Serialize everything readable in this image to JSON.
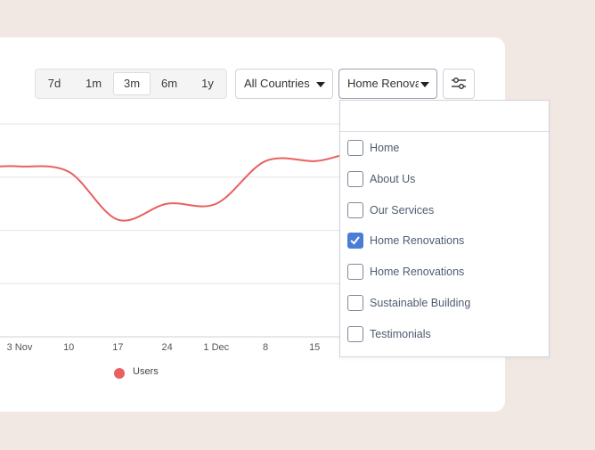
{
  "time_ranges": [
    "7d",
    "1m",
    "3m",
    "6m",
    "1y"
  ],
  "active_range": "3m",
  "country_select": {
    "value": "All Countries"
  },
  "page_select": {
    "value": "Home Renovat"
  },
  "dropdown": {
    "search_value": "",
    "options": [
      {
        "label": "Home",
        "checked": false
      },
      {
        "label": "About Us",
        "checked": false
      },
      {
        "label": "Our Services",
        "checked": false
      },
      {
        "label": "Home Renovations",
        "checked": true
      },
      {
        "label": "Home Renovations",
        "checked": false
      },
      {
        "label": "Sustainable Building",
        "checked": false
      },
      {
        "label": "Testimonials",
        "checked": false
      }
    ]
  },
  "chart_data": {
    "type": "line",
    "x_labels": [
      "3 Nov",
      "10",
      "17",
      "24",
      "1 Dec",
      "8",
      "15"
    ],
    "series": [
      {
        "name": "Users",
        "color": "#e8605f",
        "points": [
          [
            0,
            3.2
          ],
          [
            1,
            3.1
          ],
          [
            2,
            2.2
          ],
          [
            3,
            2.5
          ],
          [
            4,
            2.5
          ],
          [
            5,
            3.3
          ],
          [
            6,
            3.3
          ],
          [
            6.5,
            3.4
          ]
        ]
      }
    ],
    "ylim": [
      0,
      4
    ],
    "grid": true
  },
  "legend": {
    "label": "Users",
    "color": "#e8605f"
  },
  "icons": {
    "settings": "sliders-icon",
    "caret": "caret-down-icon",
    "check": "check-icon"
  }
}
